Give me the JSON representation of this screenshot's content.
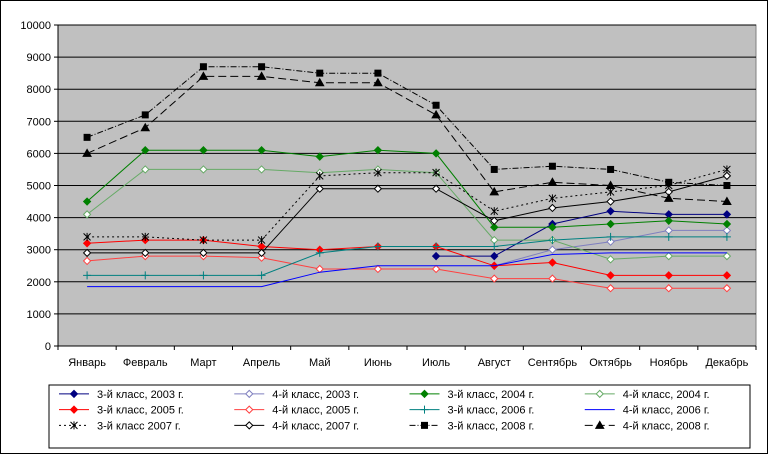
{
  "chart_data": {
    "type": "line",
    "title": "",
    "xlabel": "",
    "ylabel": "",
    "ylim": [
      0,
      10000
    ],
    "yticks": [
      0,
      1000,
      2000,
      3000,
      4000,
      5000,
      6000,
      7000,
      8000,
      9000,
      10000
    ],
    "grid": "horizontal",
    "plot_background": "#c0c0c0",
    "legend_position": "bottom",
    "categories": [
      "Январь",
      "Февраль",
      "Март",
      "Апрель",
      "Май",
      "Июнь",
      "Июль",
      "Август",
      "Сентябрь",
      "Октябрь",
      "Ноябрь",
      "Декабрь"
    ],
    "series": [
      {
        "name": "3-й класс, 2003 г.",
        "color": "#000080",
        "marker": "diamond",
        "dash": "",
        "values": [
          null,
          null,
          null,
          null,
          null,
          null,
          2800,
          2800,
          3800,
          4200,
          4100,
          4100
        ]
      },
      {
        "name": "4-й класс, 2003 г.",
        "color": "#7f7fbf",
        "marker": "diamond-open",
        "dash": "",
        "values": [
          null,
          null,
          null,
          null,
          null,
          null,
          null,
          2500,
          3000,
          3250,
          3600,
          3600
        ]
      },
      {
        "name": "3-й класс, 2004 г.",
        "color": "#008000",
        "marker": "diamond",
        "dash": "",
        "values": [
          4500,
          6100,
          6100,
          6100,
          5900,
          6100,
          6000,
          3700,
          3700,
          3800,
          3900,
          3800
        ]
      },
      {
        "name": "4-й класс, 2004 г.",
        "color": "#66aa66",
        "marker": "diamond-open",
        "dash": "",
        "values": [
          4100,
          5500,
          5500,
          5500,
          5400,
          5500,
          5400,
          3300,
          3300,
          2700,
          2800,
          2800
        ]
      },
      {
        "name": "3-й класс, 2005 г.",
        "color": "#ff0000",
        "marker": "diamond",
        "dash": "",
        "values": [
          3200,
          3300,
          3300,
          3100,
          3000,
          3100,
          3100,
          2500,
          2600,
          2200,
          2200,
          2200
        ]
      },
      {
        "name": "4-й класс, 2005 г.",
        "color": "#ff4040",
        "marker": "diamond-open",
        "dash": "",
        "values": [
          2650,
          2800,
          2800,
          2750,
          2400,
          2400,
          2400,
          2100,
          2100,
          1800,
          1800,
          1800
        ]
      },
      {
        "name": "3-й класс, 2006 г.",
        "color": "#008080",
        "marker": "plus",
        "dash": "",
        "values": [
          2200,
          2200,
          2200,
          2200,
          2900,
          3100,
          3100,
          3100,
          3300,
          3400,
          3400,
          3400
        ]
      },
      {
        "name": "4-й класс, 2006 г.",
        "color": "#0000ff",
        "marker": "none",
        "dash": "",
        "values": [
          1850,
          1850,
          1850,
          1850,
          2300,
          2500,
          2500,
          2500,
          2850,
          2900,
          2900,
          2900
        ]
      },
      {
        "name": "3-й класс 2007 г.",
        "color": "#000000",
        "marker": "star",
        "dash": "2,3",
        "values": [
          3400,
          3400,
          3300,
          3300,
          5300,
          5400,
          5400,
          4200,
          4600,
          4800,
          5000,
          5500
        ]
      },
      {
        "name": "4-й класс, 2007 г.",
        "color": "#000000",
        "marker": "diamond-open",
        "dash": "",
        "values": [
          2900,
          2900,
          2900,
          2900,
          4900,
          4900,
          4900,
          3900,
          4300,
          4500,
          4800,
          5300
        ]
      },
      {
        "name": "3-й класс, 2008 г.",
        "color": "#000000",
        "marker": "square",
        "dash": "6,2,1,2",
        "values": [
          6500,
          7200,
          8700,
          8700,
          8500,
          8500,
          7500,
          5500,
          5600,
          5500,
          5100,
          5000
        ]
      },
      {
        "name": "4-й класс, 2008 г.",
        "color": "#000000",
        "marker": "triangle",
        "dash": "8,4",
        "values": [
          6000,
          6800,
          8400,
          8400,
          8200,
          8200,
          7200,
          4800,
          5100,
          5000,
          4600,
          4500
        ]
      }
    ]
  }
}
